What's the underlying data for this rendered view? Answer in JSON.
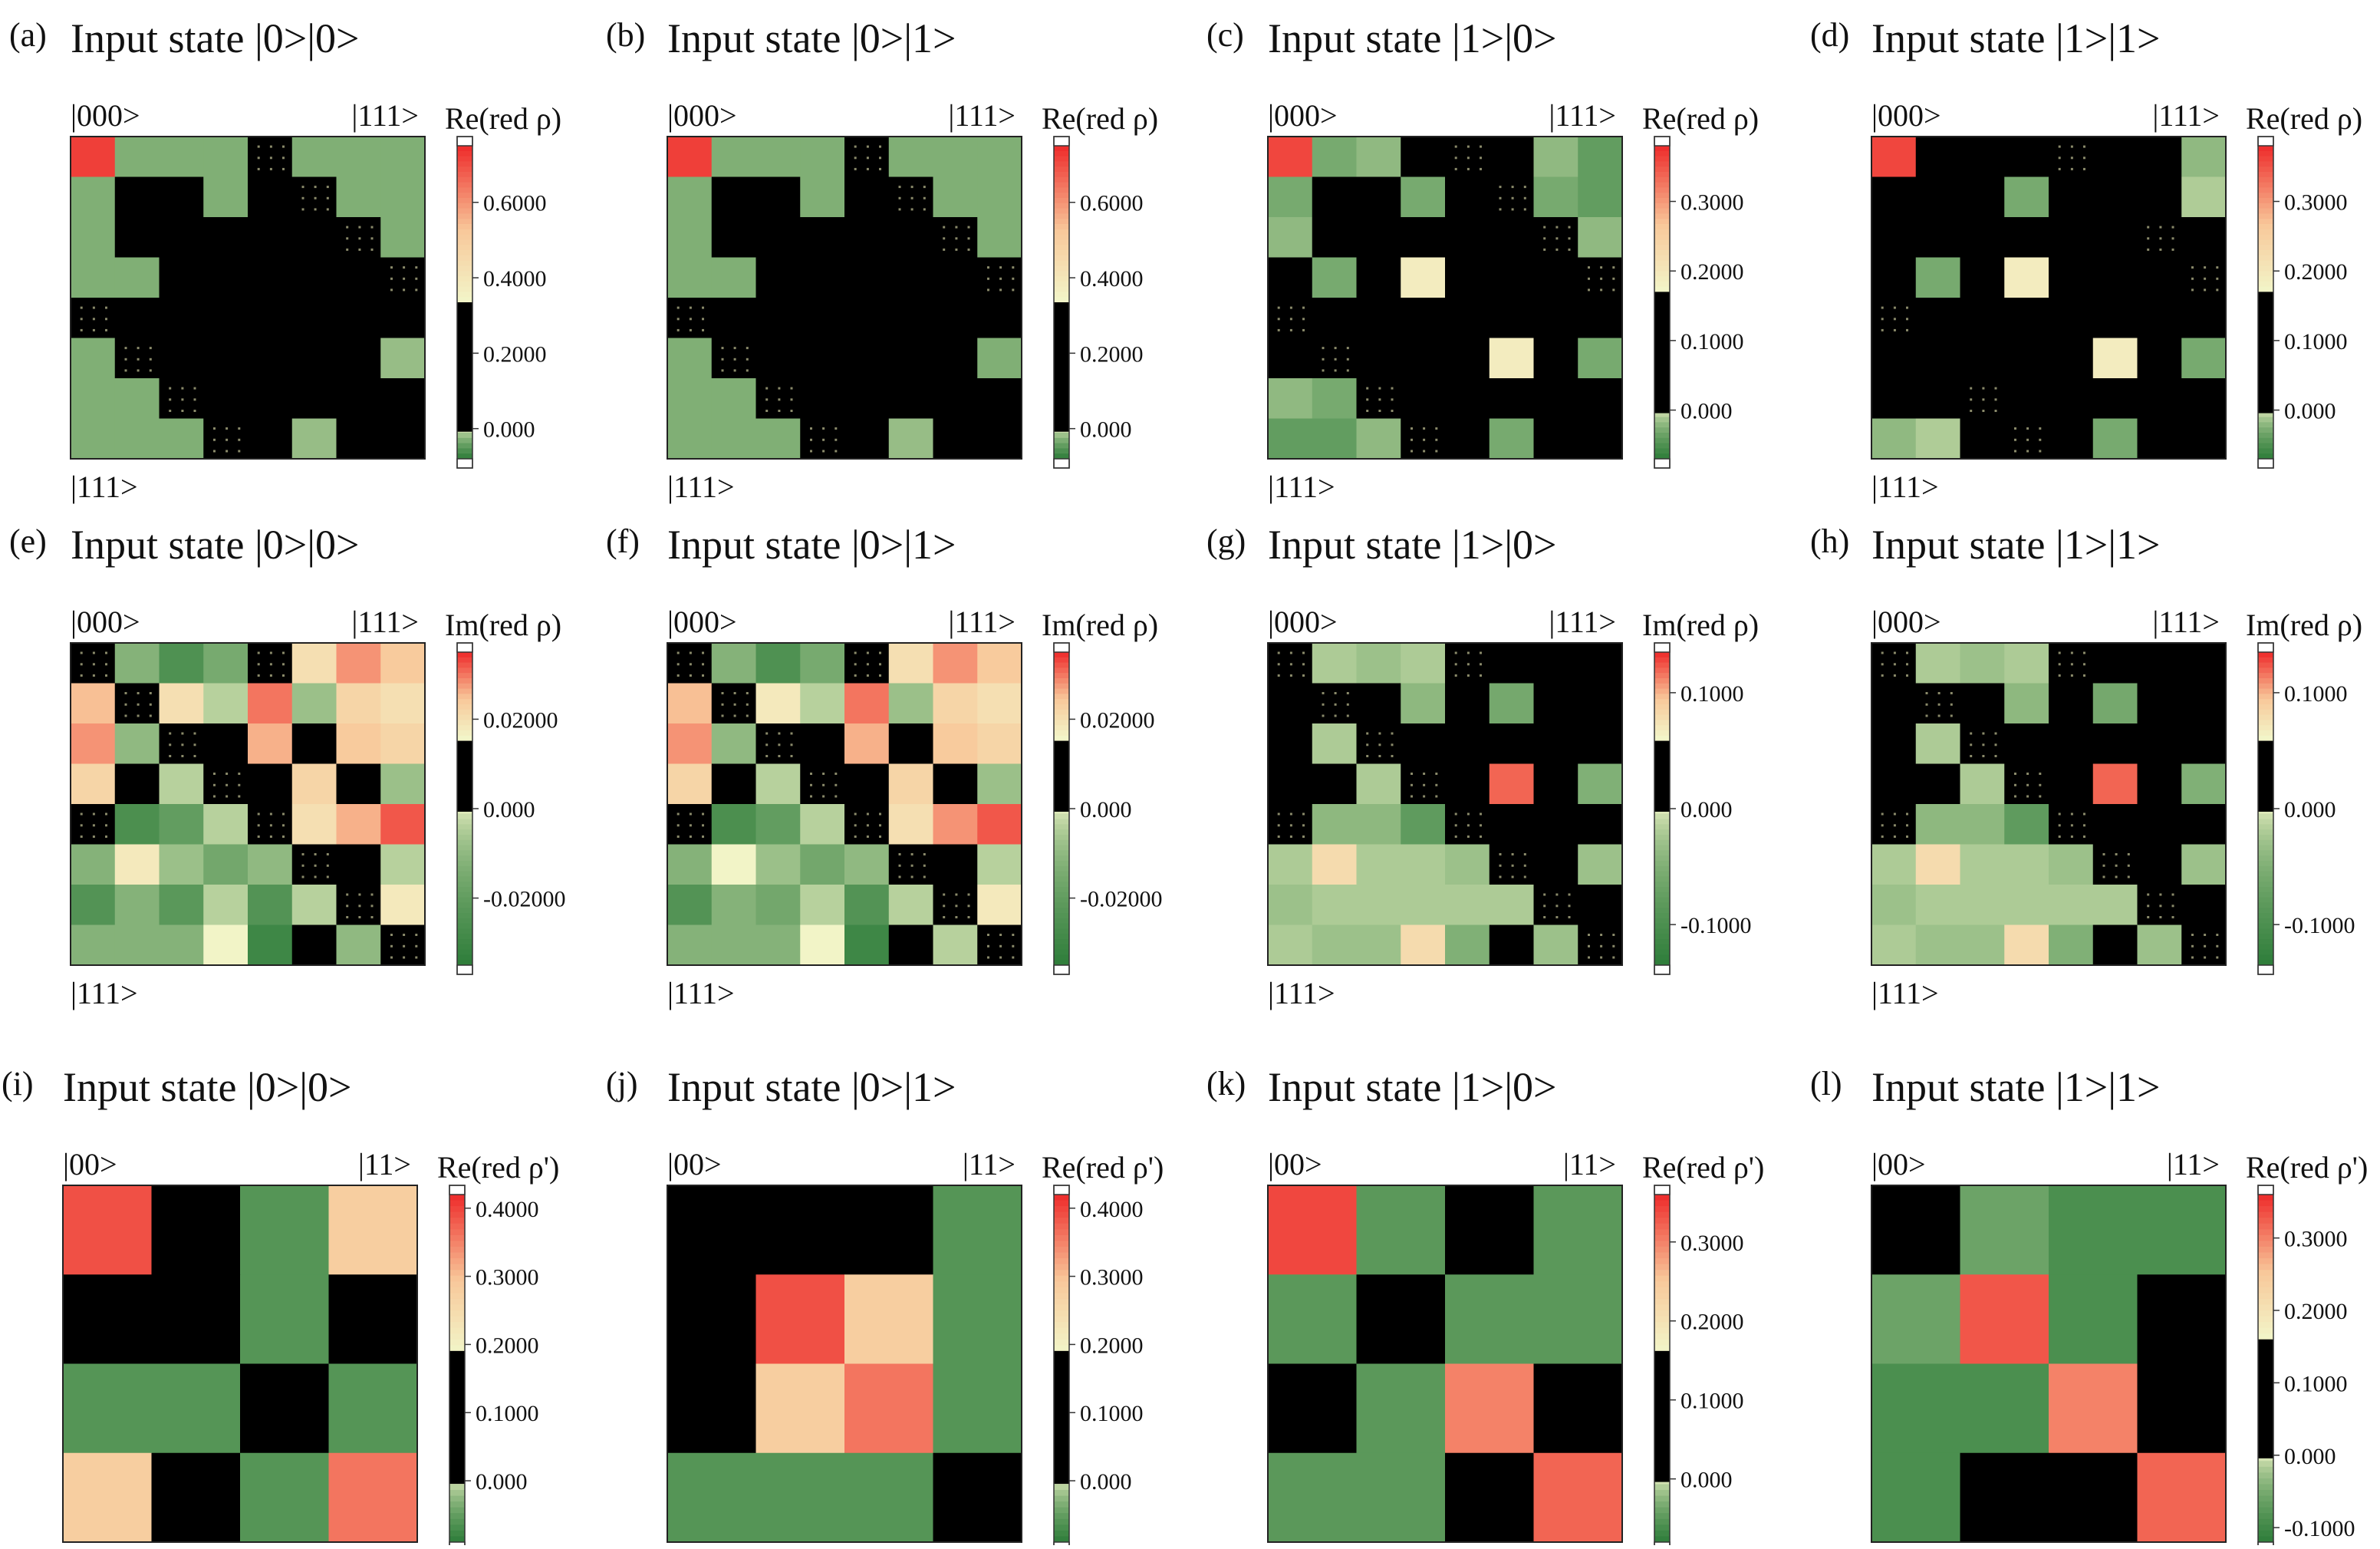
{
  "colorbar_colors": {
    "neg_dark": "#2e7d3a",
    "zero_band": "#000000",
    "light": "#f2f5c8",
    "mid_orange": "#f8c89a",
    "pos_red": "#ee2a2a",
    "cap": "#ffffff"
  },
  "chart_data": [
    {
      "type": "heatmap",
      "letter": "(a)",
      "title": "Input state |0>|0>",
      "basis_start": "|000>",
      "basis_end": "|111>",
      "colorbar_label": "Re(red ρ)",
      "ticks": [
        "0.6000",
        "0.4000",
        "0.2000",
        "0.000"
      ],
      "tick_values": [
        0.6,
        0.4,
        0.2,
        0.0
      ],
      "range": [
        -0.08,
        0.75
      ],
      "matrix": [
        [
          0.72,
          -0.03,
          -0.03,
          -0.03,
          0.0,
          -0.03,
          -0.03,
          -0.03
        ],
        [
          -0.03,
          0.09,
          0.06,
          -0.03,
          0.05,
          0.0,
          -0.03,
          -0.03
        ],
        [
          -0.03,
          0.06,
          0.08,
          0.05,
          0.05,
          0.05,
          0.0,
          -0.03
        ],
        [
          -0.03,
          -0.03,
          0.05,
          0.07,
          0.05,
          0.05,
          0.05,
          0.0
        ],
        [
          0.0,
          0.05,
          0.05,
          0.05,
          0.06,
          0.05,
          0.05,
          0.05
        ],
        [
          -0.03,
          0.0,
          0.05,
          0.05,
          0.05,
          0.07,
          0.04,
          -0.02
        ],
        [
          -0.03,
          -0.03,
          0.0,
          0.05,
          0.05,
          0.04,
          0.08,
          0.05
        ],
        [
          -0.03,
          -0.03,
          -0.03,
          0.0,
          0.05,
          -0.02,
          0.05,
          0.09
        ]
      ]
    },
    {
      "type": "heatmap",
      "letter": "(b)",
      "title": "Input state |0>|1>",
      "basis_start": "|000>",
      "basis_end": "|111>",
      "colorbar_label": "Re(red ρ)",
      "ticks": [
        "0.6000",
        "0.4000",
        "0.2000",
        "0.000"
      ],
      "tick_values": [
        0.6,
        0.4,
        0.2,
        0.0
      ],
      "range": [
        -0.08,
        0.75
      ],
      "matrix": [
        [
          0.72,
          -0.03,
          -0.03,
          -0.03,
          0.0,
          -0.03,
          -0.03,
          -0.03
        ],
        [
          -0.03,
          0.05,
          0.05,
          -0.03,
          0.05,
          0.0,
          -0.03,
          -0.03
        ],
        [
          -0.03,
          0.05,
          0.05,
          0.05,
          0.05,
          0.05,
          0.0,
          -0.03
        ],
        [
          -0.03,
          -0.03,
          0.05,
          0.05,
          0.05,
          0.05,
          0.05,
          0.0
        ],
        [
          0.0,
          0.05,
          0.05,
          0.05,
          0.05,
          0.05,
          0.05,
          0.05
        ],
        [
          -0.03,
          0.0,
          0.05,
          0.05,
          0.05,
          0.05,
          0.05,
          -0.03
        ],
        [
          -0.03,
          -0.03,
          0.0,
          0.05,
          0.05,
          0.05,
          0.05,
          0.05
        ],
        [
          -0.03,
          -0.03,
          -0.03,
          0.0,
          0.05,
          -0.02,
          0.05,
          0.05
        ]
      ]
    },
    {
      "type": "heatmap",
      "letter": "(c)",
      "title": "Input state |1>|0>",
      "basis_start": "|000>",
      "basis_end": "|111>",
      "colorbar_label": "Re(red ρ)",
      "ticks": [
        "0.3000",
        "0.2000",
        "0.1000",
        "0.000"
      ],
      "tick_values": [
        0.3,
        0.2,
        0.1,
        0.0
      ],
      "range": [
        -0.07,
        0.38
      ],
      "matrix": [
        [
          0.36,
          -0.03,
          -0.02,
          0.02,
          0.0,
          0.02,
          -0.02,
          -0.04
        ],
        [
          -0.03,
          0.09,
          0.07,
          -0.03,
          0.06,
          0.0,
          -0.03,
          -0.04
        ],
        [
          -0.02,
          0.07,
          0.07,
          0.05,
          0.06,
          0.07,
          0.0,
          -0.02
        ],
        [
          0.02,
          -0.03,
          0.05,
          0.19,
          0.07,
          0.15,
          0.06,
          0.0
        ],
        [
          0.0,
          0.06,
          0.06,
          0.07,
          0.09,
          0.06,
          0.08,
          0.07
        ],
        [
          0.02,
          0.0,
          0.07,
          0.15,
          0.06,
          0.19,
          0.05,
          -0.03
        ],
        [
          -0.02,
          -0.03,
          0.0,
          0.06,
          0.08,
          0.05,
          0.07,
          0.08
        ],
        [
          -0.04,
          -0.04,
          -0.02,
          0.0,
          0.07,
          -0.03,
          0.08,
          0.09
        ]
      ]
    },
    {
      "type": "heatmap",
      "letter": "(d)",
      "title": "Input state |1>|1>",
      "basis_start": "|000>",
      "basis_end": "|111>",
      "colorbar_label": "Re(red ρ)",
      "ticks": [
        "0.3000",
        "0.2000",
        "0.1000",
        "0.000"
      ],
      "tick_values": [
        0.3,
        0.2,
        0.1,
        0.0
      ],
      "range": [
        -0.07,
        0.38
      ],
      "matrix": [
        [
          0.36,
          0.06,
          0.04,
          0.06,
          0.0,
          0.04,
          0.04,
          -0.02
        ],
        [
          0.06,
          0.09,
          0.06,
          -0.03,
          0.05,
          0.04,
          0.04,
          -0.01
        ],
        [
          0.04,
          0.06,
          0.08,
          0.04,
          0.05,
          0.05,
          0.0,
          0.04
        ],
        [
          0.06,
          -0.03,
          0.04,
          0.19,
          0.05,
          0.15,
          0.06,
          0.0
        ],
        [
          0.0,
          0.05,
          0.05,
          0.05,
          0.08,
          0.05,
          0.05,
          0.05
        ],
        [
          0.04,
          0.04,
          0.05,
          0.15,
          0.05,
          0.19,
          0.05,
          -0.03
        ],
        [
          0.04,
          0.04,
          0.0,
          0.06,
          0.05,
          0.05,
          0.07,
          0.06
        ],
        [
          -0.02,
          -0.01,
          0.04,
          0.0,
          0.05,
          -0.03,
          0.06,
          0.09
        ]
      ]
    },
    {
      "type": "heatmap",
      "letter": "(e)",
      "title": "Input state |0>|0>",
      "basis_start": "|000>",
      "basis_end": "|111>",
      "colorbar_label": "Im(red ρ)",
      "ticks": [
        "0.02000",
        "0.000",
        "-0.02000"
      ],
      "tick_values": [
        0.02,
        0.0,
        -0.02
      ],
      "range": [
        -0.035,
        0.035
      ],
      "matrix": [
        [
          0.0,
          -0.012,
          -0.025,
          -0.015,
          0.0,
          0.02,
          0.028,
          0.024
        ],
        [
          0.025,
          0.0,
          0.02,
          -0.004,
          0.03,
          -0.008,
          0.022,
          0.02
        ],
        [
          0.028,
          -0.01,
          0.0,
          0.008,
          0.026,
          0.01,
          0.024,
          0.022
        ],
        [
          0.022,
          0.004,
          -0.004,
          0.0,
          0.008,
          0.022,
          0.012,
          -0.008
        ],
        [
          0.0,
          -0.026,
          -0.02,
          -0.004,
          0.0,
          0.02,
          0.026,
          0.032
        ],
        [
          -0.012,
          0.018,
          -0.008,
          -0.016,
          -0.01,
          0.0,
          0.01,
          -0.004
        ],
        [
          -0.024,
          -0.012,
          -0.022,
          -0.004,
          -0.024,
          -0.004,
          0.0,
          0.018
        ],
        [
          -0.012,
          -0.012,
          -0.012,
          0.016,
          -0.03,
          0.008,
          -0.01,
          0.0
        ]
      ]
    },
    {
      "type": "heatmap",
      "letter": "(f)",
      "title": "Input state |0>|1>",
      "basis_start": "|000>",
      "basis_end": "|111>",
      "colorbar_label": "Im(red ρ)",
      "ticks": [
        "0.02000",
        "0.000",
        "-0.02000"
      ],
      "tick_values": [
        0.02,
        0.0,
        -0.02
      ],
      "range": [
        -0.035,
        0.035
      ],
      "matrix": [
        [
          0.0,
          -0.012,
          -0.025,
          -0.015,
          0.0,
          0.02,
          0.028,
          0.024
        ],
        [
          0.025,
          0.0,
          0.018,
          -0.004,
          0.03,
          -0.008,
          0.022,
          0.02
        ],
        [
          0.028,
          -0.01,
          0.0,
          0.008,
          0.026,
          0.01,
          0.024,
          0.022
        ],
        [
          0.022,
          0.004,
          -0.004,
          0.0,
          0.008,
          0.022,
          0.012,
          -0.008
        ],
        [
          0.0,
          -0.026,
          -0.02,
          -0.004,
          0.0,
          0.02,
          0.028,
          0.032
        ],
        [
          -0.012,
          0.016,
          -0.008,
          -0.016,
          -0.01,
          0.0,
          0.01,
          -0.004
        ],
        [
          -0.024,
          -0.012,
          -0.016,
          -0.004,
          -0.024,
          -0.004,
          0.0,
          0.018
        ],
        [
          -0.012,
          -0.012,
          -0.012,
          0.016,
          -0.03,
          0.008,
          -0.004,
          0.0
        ]
      ]
    },
    {
      "type": "heatmap",
      "letter": "(g)",
      "title": "Input state |1>|0>",
      "basis_start": "|000>",
      "basis_end": "|111>",
      "colorbar_label": "Im(red ρ)",
      "ticks": [
        "0.1000",
        "0.000",
        "-0.1000"
      ],
      "tick_values": [
        0.1,
        0.0,
        -0.1
      ],
      "range": [
        -0.135,
        0.135
      ],
      "matrix": [
        [
          0.0,
          -0.02,
          -0.03,
          -0.02,
          0.0,
          0.02,
          0.04,
          0.03
        ],
        [
          0.03,
          0.0,
          0.02,
          -0.04,
          0.05,
          -0.06,
          0.02,
          0.05
        ],
        [
          0.04,
          -0.02,
          0.0,
          0.02,
          0.03,
          0.01,
          0.03,
          0.03
        ],
        [
          0.03,
          0.06,
          -0.02,
          0.0,
          0.02,
          0.12,
          0.02,
          -0.05
        ],
        [
          0.0,
          -0.04,
          -0.04,
          -0.08,
          0.0,
          0.03,
          0.05,
          0.05
        ],
        [
          -0.02,
          0.08,
          -0.02,
          -0.02,
          -0.03,
          0.0,
          0.02,
          -0.03
        ],
        [
          -0.03,
          -0.02,
          -0.02,
          -0.02,
          -0.02,
          -0.02,
          0.0,
          0.03
        ],
        [
          -0.02,
          -0.03,
          -0.03,
          0.08,
          -0.05,
          0.06,
          -0.03,
          0.0
        ]
      ]
    },
    {
      "type": "heatmap",
      "letter": "(h)",
      "title": "Input state |1>|1>",
      "basis_start": "|000>",
      "basis_end": "|111>",
      "colorbar_label": "Im(red ρ)",
      "ticks": [
        "0.1000",
        "0.000",
        "-0.1000"
      ],
      "tick_values": [
        0.1,
        0.0,
        -0.1
      ],
      "range": [
        -0.135,
        0.135
      ],
      "matrix": [
        [
          0.0,
          -0.02,
          -0.03,
          -0.02,
          0.0,
          0.02,
          0.04,
          0.03
        ],
        [
          0.03,
          0.0,
          0.02,
          -0.04,
          0.05,
          -0.06,
          0.02,
          0.05
        ],
        [
          0.04,
          -0.02,
          0.0,
          0.02,
          0.03,
          0.01,
          0.03,
          0.03
        ],
        [
          0.03,
          0.06,
          -0.02,
          0.0,
          0.02,
          0.12,
          0.02,
          -0.05
        ],
        [
          0.0,
          -0.04,
          -0.04,
          -0.08,
          0.0,
          0.03,
          0.05,
          0.05
        ],
        [
          -0.02,
          0.08,
          -0.02,
          -0.02,
          -0.03,
          0.0,
          0.02,
          -0.03
        ],
        [
          -0.03,
          -0.02,
          -0.02,
          -0.02,
          -0.02,
          -0.02,
          0.0,
          0.03
        ],
        [
          -0.02,
          -0.03,
          -0.03,
          0.08,
          -0.05,
          0.06,
          -0.03,
          0.0
        ]
      ]
    },
    {
      "type": "heatmap",
      "letter": "(i)",
      "title": "Input state |0>|0>",
      "basis_start": "|00>",
      "basis_end": "|11>",
      "colorbar_label": "Re(red ρ')",
      "ticks": [
        "0.4000",
        "0.3000",
        "0.2000",
        "0.1000",
        "0.000"
      ],
      "tick_values": [
        0.4,
        0.3,
        0.2,
        0.1,
        0.0
      ],
      "range": [
        -0.09,
        0.42
      ],
      "matrix": [
        [
          0.39,
          0.09,
          -0.06,
          0.28
        ],
        [
          0.09,
          0.12,
          -0.06,
          0.12
        ],
        [
          -0.06,
          -0.06,
          0.09,
          -0.06
        ],
        [
          0.28,
          0.12,
          -0.06,
          0.36
        ]
      ]
    },
    {
      "type": "heatmap",
      "letter": "(j)",
      "title": "Input state |0>|1>",
      "basis_start": "|00>",
      "basis_end": "|11>",
      "colorbar_label": "Re(red ρ')",
      "ticks": [
        "0.4000",
        "0.3000",
        "0.2000",
        "0.1000",
        "0.000"
      ],
      "tick_values": [
        0.4,
        0.3,
        0.2,
        0.1,
        0.0
      ],
      "range": [
        -0.09,
        0.42
      ],
      "matrix": [
        [
          0.12,
          0.09,
          0.12,
          -0.06
        ],
        [
          0.09,
          0.39,
          0.28,
          -0.06
        ],
        [
          0.12,
          0.28,
          0.36,
          -0.06
        ],
        [
          -0.06,
          -0.06,
          -0.06,
          0.09
        ]
      ]
    },
    {
      "type": "heatmap",
      "letter": "(k)",
      "title": "Input state |1>|0>",
      "basis_start": "|00>",
      "basis_end": "|11>",
      "colorbar_label": "Re(red ρ')",
      "ticks": [
        "0.3000",
        "0.2000",
        "0.1000",
        "0.000"
      ],
      "tick_values": [
        0.3,
        0.2,
        0.1,
        0.0
      ],
      "range": [
        -0.08,
        0.36
      ],
      "matrix": [
        [
          0.34,
          -0.05,
          0.05,
          -0.05
        ],
        [
          -0.05,
          0.09,
          -0.05,
          -0.05
        ],
        [
          0.05,
          -0.05,
          0.3,
          0.09
        ],
        [
          -0.05,
          -0.05,
          0.09,
          0.32
        ]
      ]
    },
    {
      "type": "heatmap",
      "letter": "(l)",
      "title": "Input state |1>|1>",
      "basis_start": "|00>",
      "basis_end": "|11>",
      "colorbar_label": "Re(red ρ')",
      "ticks": [
        "0.3000",
        "0.2000",
        "0.1000",
        "0.000",
        "-0.1000"
      ],
      "tick_values": [
        0.3,
        0.2,
        0.1,
        0.0,
        -0.1
      ],
      "range": [
        -0.12,
        0.36
      ],
      "matrix": [
        [
          0.09,
          -0.06,
          -0.09,
          -0.09
        ],
        [
          -0.06,
          0.33,
          -0.09,
          0.05
        ],
        [
          -0.09,
          -0.09,
          0.3,
          0.09
        ],
        [
          -0.09,
          0.05,
          0.09,
          0.32
        ]
      ]
    }
  ]
}
